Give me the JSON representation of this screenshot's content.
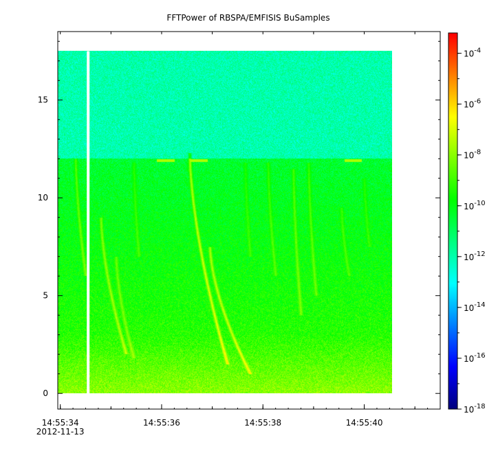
{
  "chart_data": {
    "type": "heatmap",
    "title": "FFTPower of RBSPA/EMFISIS  BuSamples",
    "xlabel": "",
    "ylabel": "",
    "x_tick_labels": [
      "14:55:34",
      "14:55:36",
      "14:55:38",
      "14:55:40"
    ],
    "x_tick_seconds": [
      34,
      36,
      38,
      40
    ],
    "x_date_label": "2012-11-13",
    "x_range_seconds": [
      33.95,
      41.5
    ],
    "data_range_seconds": [
      33.95,
      40.55
    ],
    "gap_seconds": 34.55,
    "y_range": [
      -0.8,
      18.5
    ],
    "y_ticks": [
      0,
      5,
      10,
      15
    ],
    "data_y_range": [
      0,
      17.5
    ],
    "colorbar": {
      "scale": "log",
      "range_exponents": [
        -18,
        -3.2
      ],
      "tick_base": "10",
      "tick_exponents": [
        "-18",
        "-16",
        "-14",
        "-12",
        "-10",
        "-8",
        "-6",
        "-4"
      ],
      "colors": [
        "#00007f",
        "#0000ff",
        "#007fff",
        "#00ffff",
        "#00ff7f",
        "#00ff00",
        "#7fff00",
        "#ffff00",
        "#ff7f00",
        "#ff0000"
      ]
    },
    "features": {
      "background_band_edge_y": 12.0,
      "tones_y": [
        {
          "t0": 35.9,
          "t1": 36.25,
          "y": 11.9
        },
        {
          "t0": 36.55,
          "t1": 36.9,
          "y": 11.9
        },
        {
          "t0": 39.6,
          "t1": 39.95,
          "y": 11.9
        }
      ],
      "chorus_elements": [
        {
          "t_top": 36.55,
          "y_top": 12.3,
          "t_bottom": 37.3,
          "y_bottom": 1.5,
          "strength": 1.0
        },
        {
          "t_top": 36.95,
          "y_top": 7.5,
          "t_bottom": 37.75,
          "y_bottom": 1.0,
          "strength": 0.85
        },
        {
          "t_top": 34.3,
          "y_top": 12.0,
          "t_bottom": 34.5,
          "y_bottom": 6.0,
          "strength": 0.6
        },
        {
          "t_top": 34.8,
          "y_top": 9.0,
          "t_bottom": 35.3,
          "y_bottom": 2.0,
          "strength": 0.7
        },
        {
          "t_top": 35.1,
          "y_top": 7.0,
          "t_bottom": 35.45,
          "y_bottom": 1.8,
          "strength": 0.5
        },
        {
          "t_top": 38.1,
          "y_top": 11.8,
          "t_bottom": 38.25,
          "y_bottom": 6.0,
          "strength": 0.45
        },
        {
          "t_top": 38.6,
          "y_top": 11.5,
          "t_bottom": 38.75,
          "y_bottom": 4.0,
          "strength": 0.55
        },
        {
          "t_top": 38.9,
          "y_top": 11.8,
          "t_bottom": 39.05,
          "y_bottom": 5.0,
          "strength": 0.5
        },
        {
          "t_top": 39.55,
          "y_top": 9.5,
          "t_bottom": 39.7,
          "y_bottom": 6.0,
          "strength": 0.4
        },
        {
          "t_top": 35.45,
          "y_top": 11.8,
          "t_bottom": 35.55,
          "y_bottom": 7.0,
          "strength": 0.4
        },
        {
          "t_top": 37.65,
          "y_top": 11.8,
          "t_bottom": 37.75,
          "y_bottom": 7.0,
          "strength": 0.35
        },
        {
          "t_top": 40.0,
          "y_top": 11.0,
          "t_bottom": 40.1,
          "y_bottom": 7.5,
          "strength": 0.35
        }
      ]
    },
    "grid": false
  }
}
